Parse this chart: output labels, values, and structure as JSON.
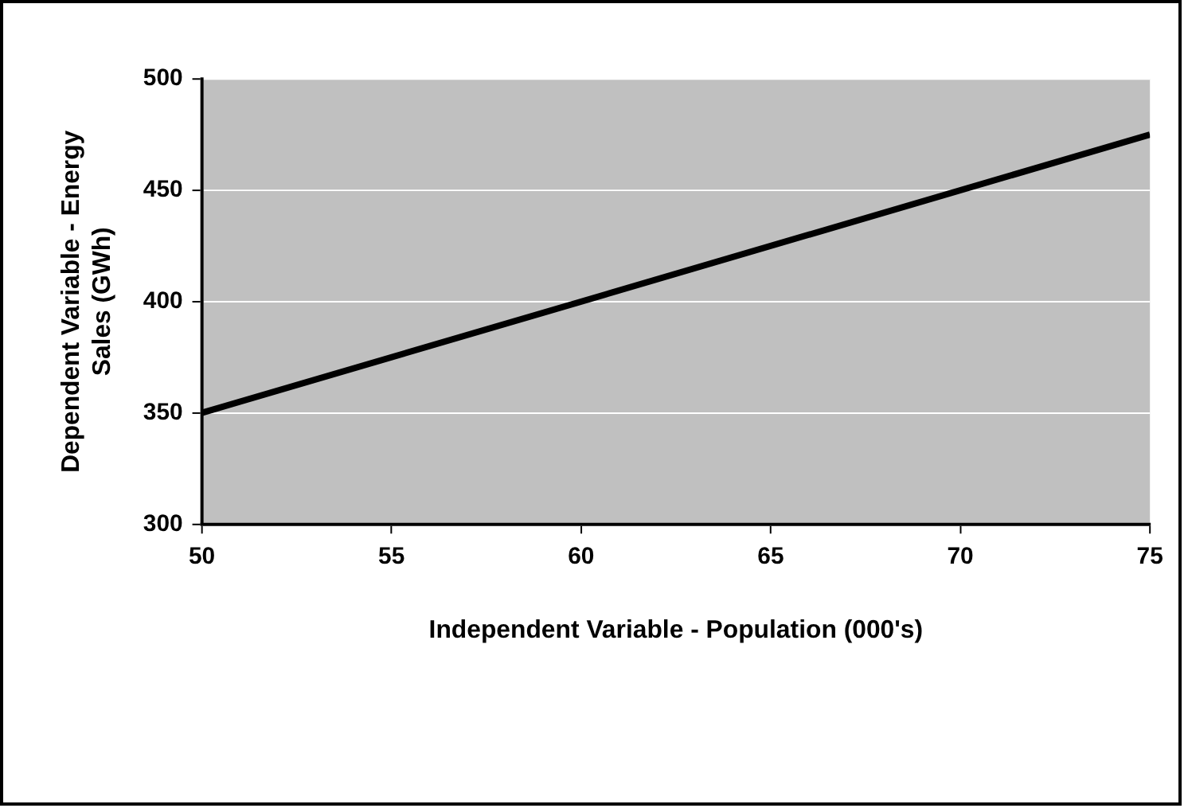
{
  "chart_data": {
    "type": "line",
    "xlabel": "Independent Variable - Population (000's)",
    "ylabel": "Dependent Variable - Energy Sales (GWh)",
    "x": [
      50,
      75
    ],
    "series": [
      {
        "color": "#000000",
        "values": [
          350,
          475
        ]
      }
    ],
    "xlim": [
      50,
      75
    ],
    "xticks": [
      50,
      55,
      60,
      65,
      70,
      75
    ],
    "ylim": [
      300,
      500
    ],
    "yticks": [
      300,
      350,
      400,
      450,
      500
    ],
    "grid": "y",
    "legend": false,
    "marker": "none",
    "line_style": "solid"
  }
}
